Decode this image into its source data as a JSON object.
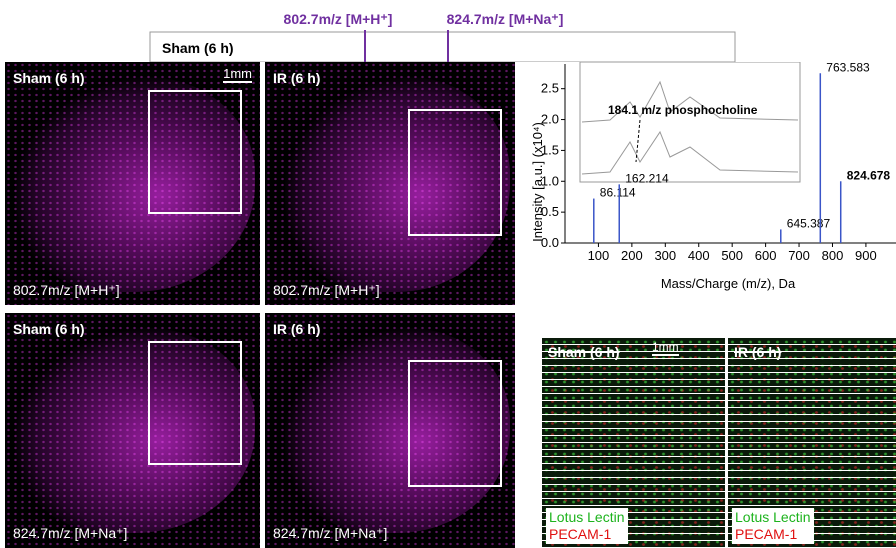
{
  "top_labels": [
    "802.7m/z [M+H⁺]",
    "824.7m/z [M+Na⁺]"
  ],
  "inset_title": "Sham (6 h)",
  "panels": [
    {
      "title": "Sham (6 h)",
      "caption": "802.7m/z [M+H⁺]",
      "scale": "1mm"
    },
    {
      "title": "IR (6 h)",
      "caption": "802.7m/z [M+H⁺]"
    },
    {
      "title": "Sham (6 h)",
      "caption": "824.7m/z [M+Na⁺]"
    },
    {
      "title": "IR (6 h)",
      "caption": "824.7m/z [M+Na⁺]"
    }
  ],
  "fluo_panels": [
    {
      "title": "Sham (6 h)",
      "scale": "1mm",
      "legend": [
        "Lotus Lectin",
        "PECAM-1"
      ]
    },
    {
      "title": "IR (6 h)",
      "legend": [
        "Lotus Lectin",
        "PECAM-1"
      ]
    }
  ],
  "chart_data": {
    "type": "stick",
    "ylabel": "Intensity [a.u.] (x10⁴)",
    "xlabel": "Mass/Charge (m/z), Da",
    "annotation": "184.1 m/z phosphocholine",
    "x": [
      86.114,
      162.214,
      645.387,
      763.583,
      824.678
    ],
    "values": [
      0.72,
      0.95,
      0.22,
      2.75,
      1.0
    ],
    "color": "#3a55c8",
    "xlim": [
      0,
      990
    ],
    "ylim": [
      0,
      2.9
    ],
    "xticks": [
      100,
      200,
      300,
      400,
      500,
      600,
      700,
      800,
      900
    ],
    "yticks": [
      {
        "value": 0,
        "label": "0.0"
      },
      0.5,
      {
        "value": 1,
        "label": "1.0"
      },
      1.5,
      {
        "value": 2,
        "label": "2.0"
      },
      2.5
    ]
  }
}
